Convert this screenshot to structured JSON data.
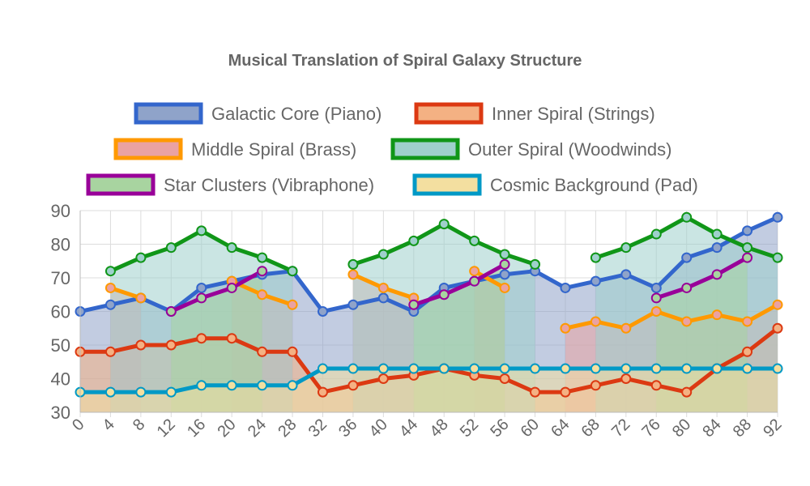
{
  "chart_data": {
    "type": "area",
    "title": "Musical Translation of Spiral Galaxy Structure",
    "xlabel": "",
    "ylabel": "",
    "ylim": [
      30,
      90
    ],
    "yticks": [
      30,
      40,
      50,
      60,
      70,
      80,
      90
    ],
    "x": [
      0,
      4,
      8,
      12,
      16,
      20,
      24,
      28,
      32,
      36,
      40,
      44,
      48,
      52,
      56,
      60,
      64,
      68,
      72,
      76,
      80,
      84,
      88,
      92
    ],
    "grid": true,
    "legend_position": "top",
    "series": [
      {
        "name": "Galactic Core (Piano)",
        "line_color": "#3366cc",
        "fill_color": "#8fa3c9",
        "values": [
          60,
          62,
          64,
          60,
          67,
          69,
          71,
          72,
          60,
          62,
          64,
          60,
          67,
          69,
          71,
          72,
          67,
          69,
          71,
          67,
          76,
          79,
          84,
          88
        ]
      },
      {
        "name": "Inner Spiral (Strings)",
        "line_color": "#dc3912",
        "fill_color": "#f4b183",
        "values": [
          48,
          48,
          50,
          50,
          52,
          52,
          48,
          48,
          36,
          38,
          40,
          41,
          43,
          41,
          40,
          36,
          36,
          38,
          40,
          38,
          36,
          43,
          48,
          55
        ]
      },
      {
        "name": "Middle Spiral (Brass)",
        "line_color": "#ff9900",
        "fill_color": "#eaa2a2",
        "values": [
          null,
          67,
          64,
          null,
          null,
          69,
          65,
          62,
          null,
          71,
          67,
          64,
          null,
          72,
          67,
          null,
          55,
          57,
          55,
          60,
          57,
          59,
          57,
          62
        ]
      },
      {
        "name": "Outer Spiral (Woodwinds)",
        "line_color": "#109618",
        "fill_color": "#9fd0cc",
        "values": [
          null,
          72,
          76,
          79,
          84,
          79,
          76,
          72,
          null,
          74,
          77,
          81,
          86,
          81,
          77,
          74,
          null,
          76,
          79,
          83,
          88,
          83,
          79,
          76
        ]
      },
      {
        "name": "Star Clusters (Vibraphone)",
        "line_color": "#990099",
        "fill_color": "#a8d4a0",
        "values": [
          null,
          null,
          null,
          60,
          64,
          67,
          72,
          null,
          null,
          null,
          null,
          62,
          65,
          69,
          74,
          null,
          null,
          null,
          null,
          64,
          67,
          71,
          76,
          null
        ]
      },
      {
        "name": "Cosmic Background (Pad)",
        "line_color": "#0099c6",
        "fill_color": "#f3dfa0",
        "values": [
          36,
          36,
          36,
          36,
          38,
          38,
          38,
          38,
          43,
          43,
          43,
          43,
          43,
          43,
          43,
          43,
          43,
          43,
          43,
          43,
          43,
          43,
          43,
          43
        ]
      }
    ]
  }
}
